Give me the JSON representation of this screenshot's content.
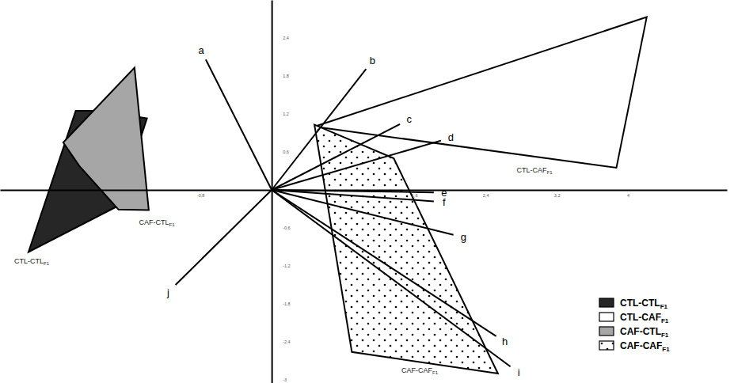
{
  "chart_data": {
    "type": "biplot",
    "xlim": [
      -3.05,
      5.11
    ],
    "ylim": [
      -3.05,
      3.0
    ],
    "xticks": [
      {
        "value": -0.8,
        "label": "-0,8"
      },
      {
        "value": 1.6,
        "label": "1,6"
      },
      {
        "value": 2.4,
        "label": "2,4"
      },
      {
        "value": 3.2,
        "label": "3,2"
      },
      4
    ],
    "yticks": [
      {
        "value": 2.4,
        "label": "2,4"
      },
      {
        "value": 1.8,
        "label": "1,8"
      },
      {
        "value": 1.2,
        "label": "1,2"
      },
      {
        "value": 0.6,
        "label": "0,6"
      },
      {
        "value": -0.6,
        "label": "-0,6"
      },
      {
        "value": -1.2,
        "label": "-1,2"
      },
      {
        "value": -1.8,
        "label": "-1,8"
      },
      {
        "value": -2.4,
        "label": "-2,4"
      },
      -3
    ],
    "legend": "bottom-right",
    "series": [
      {
        "name": "CTL-CTL",
        "subscript": "F1",
        "color": "#262626",
        "x": [
          -2.2,
          -1.94,
          -1.4,
          -1.72,
          -2.73
        ],
        "y": [
          1.25,
          1.25,
          1.13,
          -0.25,
          -0.98
        ]
      },
      {
        "name": "CTL-CAF",
        "subscript": "F1",
        "color": "#ffffff",
        "x": [
          0.48,
          4.21,
          3.87
        ],
        "y": [
          1.0,
          2.73,
          0.35
        ]
      },
      {
        "name": "CAF-CTL",
        "subscript": "F1",
        "color": "#a6a6a6",
        "x": [
          -2.34,
          -1.54,
          -1.38,
          -1.72,
          -2.16
        ],
        "y": [
          0.75,
          1.93,
          -0.32,
          -0.31,
          0.38
        ]
      },
      {
        "name": "CAF-CAF",
        "subscript": "F1",
        "color": "#ffffff",
        "marker": "dots",
        "x": [
          0.48,
          1.37,
          2.54,
          0.9
        ],
        "y": [
          1.03,
          0.5,
          -2.9,
          -2.56
        ]
      }
    ],
    "vectors": [
      {
        "label": "a",
        "x": -0.74,
        "y": 2.06
      },
      {
        "label": "b",
        "x": 1.06,
        "y": 1.91
      },
      {
        "label": "c",
        "x": 1.44,
        "y": 1.04
      },
      {
        "label": "d",
        "x": 1.9,
        "y": 0.78
      },
      {
        "label": "e",
        "x": 1.82,
        "y": -0.04
      },
      {
        "label": "f",
        "x": 1.82,
        "y": -0.18
      },
      {
        "label": "g",
        "x": 2.04,
        "y": -0.71
      },
      {
        "label": "h",
        "x": 2.52,
        "y": -2.31
      },
      {
        "label": "i",
        "x": 2.68,
        "y": -2.79
      },
      {
        "label": "j",
        "x": -1.08,
        "y": -1.5
      }
    ]
  }
}
